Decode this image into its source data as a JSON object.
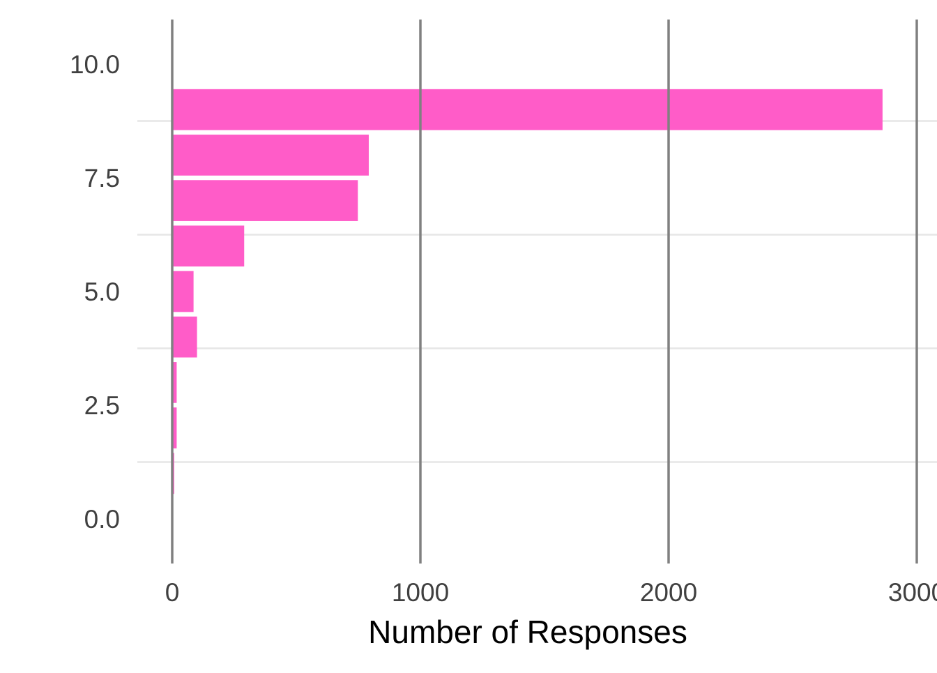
{
  "chart_data": {
    "type": "bar",
    "orientation": "horizontal",
    "title": "",
    "xlabel": "Number of Responses",
    "ylabel": "",
    "xlim": [
      0,
      3000
    ],
    "ylim": [
      -0.8,
      10.8
    ],
    "x_ticks": [
      0,
      1000,
      2000,
      3000
    ],
    "x_tick_labels": [
      "0",
      "1000",
      "2000",
      "3000"
    ],
    "y_ticks": [
      0,
      2.5,
      5,
      7.5,
      10
    ],
    "y_tick_labels": [
      "0.0",
      "2.5",
      "5.0",
      "7.5",
      "10.0"
    ],
    "grid": "on",
    "legend": "none",
    "bar_color": "#ff5cc8",
    "bars": [
      {
        "y": 0,
        "value": 4
      },
      {
        "y": 1,
        "value": 8
      },
      {
        "y": 2,
        "value": 18
      },
      {
        "y": 3,
        "value": 18
      },
      {
        "y": 4,
        "value": 100
      },
      {
        "y": 5,
        "value": 86
      },
      {
        "y": 6,
        "value": 290
      },
      {
        "y": 7,
        "value": 748
      },
      {
        "y": 8,
        "value": 792
      },
      {
        "y": 9,
        "value": 2862
      }
    ]
  }
}
